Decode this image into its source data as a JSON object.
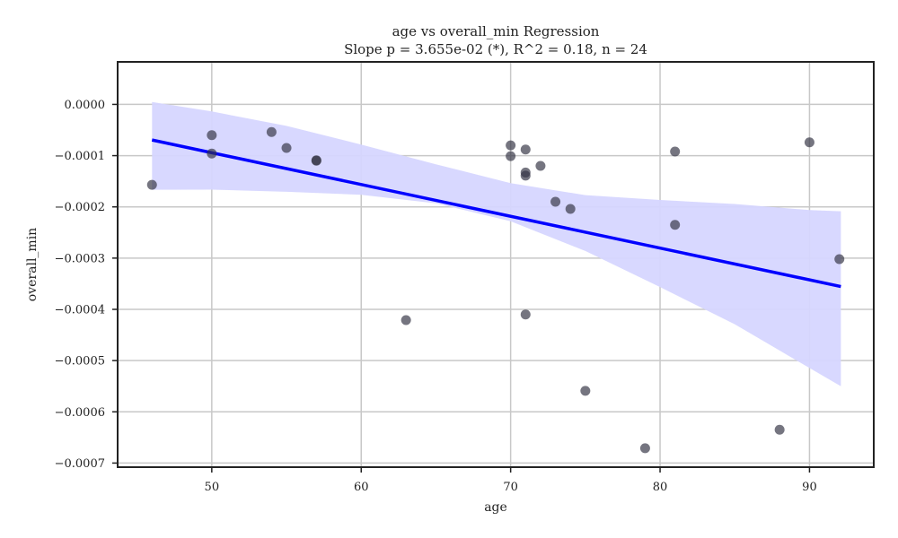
{
  "chart_data": {
    "type": "scatter",
    "title": "age vs overall_min Regression",
    "subtitle": "Slope p = 3.655e-02 (*), R^2 = 0.18, n = 24",
    "xlabel": "age",
    "ylabel": "overall_min",
    "xlim": [
      43.7,
      94.3
    ],
    "ylim": [
      -0.000708,
      8.3e-05
    ],
    "xticks": [
      50,
      60,
      70,
      80,
      90
    ],
    "xtick_labels": [
      "50",
      "60",
      "70",
      "80",
      "90"
    ],
    "yticks": [
      0.0,
      -0.0001,
      -0.0002,
      -0.0003,
      -0.0004,
      -0.0005,
      -0.0006,
      -0.0007
    ],
    "ytick_labels": [
      "0.0000",
      "−0.0001",
      "−0.0002",
      "−0.0003",
      "−0.0004",
      "−0.0005",
      "−0.0006",
      "−0.0007"
    ],
    "grid": true,
    "points": [
      {
        "x": 46,
        "y": -0.000157
      },
      {
        "x": 50,
        "y": -6e-05
      },
      {
        "x": 50,
        "y": -9.6e-05
      },
      {
        "x": 54,
        "y": -5.4e-05
      },
      {
        "x": 55,
        "y": -8.5e-05
      },
      {
        "x": 57,
        "y": -0.000109
      },
      {
        "x": 57,
        "y": -0.00011
      },
      {
        "x": 63,
        "y": -0.000421
      },
      {
        "x": 70,
        "y": -8e-05
      },
      {
        "x": 70,
        "y": -0.000101
      },
      {
        "x": 71,
        "y": -8.8e-05
      },
      {
        "x": 71,
        "y": -0.000133
      },
      {
        "x": 71,
        "y": -0.000139
      },
      {
        "x": 71,
        "y": -0.00041
      },
      {
        "x": 72,
        "y": -0.00012
      },
      {
        "x": 73,
        "y": -0.00019
      },
      {
        "x": 74,
        "y": -0.000204
      },
      {
        "x": 75,
        "y": -0.000559
      },
      {
        "x": 79,
        "y": -0.000671
      },
      {
        "x": 81,
        "y": -9.2e-05
      },
      {
        "x": 81,
        "y": -0.000235
      },
      {
        "x": 88,
        "y": -0.000635
      },
      {
        "x": 90,
        "y": -7.4e-05
      },
      {
        "x": 92,
        "y": -0.000302
      }
    ],
    "regression_line": {
      "x": [
        46,
        92.1
      ],
      "y": [
        -6.95e-05,
        -0.0003555
      ]
    },
    "confidence_band": {
      "x": [
        46,
        50,
        55,
        60,
        65,
        70,
        75,
        80,
        85,
        90,
        92.1
      ],
      "upper": [
        4.8e-06,
        -1.37e-05,
        -4.2e-05,
        -7.84e-05,
        -0.0001169,
        -0.0001538,
        -0.000177,
        -0.0001865,
        -0.0001943,
        -0.0002062,
        -0.0002086
      ],
      "lower": [
        -0.0001666,
        -0.0001664,
        -0.0001705,
        -0.0001763,
        -0.0001929,
        -0.0002282,
        -0.000286,
        -0.0003565,
        -0.000429,
        -0.0005145,
        -0.00055
      ]
    },
    "colors": {
      "points": "#333344",
      "regression_line": "#0000ff",
      "confidence_band": "#d6d6ff",
      "grid": "#c8c8c8",
      "axes": "#222222"
    }
  }
}
